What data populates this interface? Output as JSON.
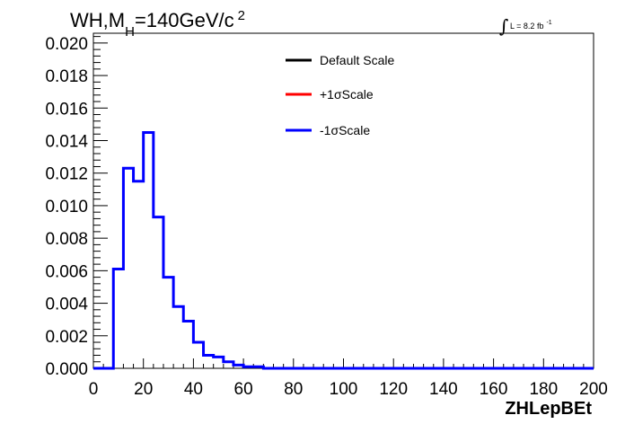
{
  "chart_data": {
    "type": "histogram",
    "title": {
      "main1": "WH,M",
      "sub": "H",
      "main2": "=140GeV/c",
      "sup": "2"
    },
    "lumi": {
      "integral": "∫",
      "text": "L = 8.2 fb",
      "sup": "-1"
    },
    "xlabel": "ZHLepBEt",
    "ylabel": "",
    "xlim": [
      0,
      200
    ],
    "ylim": [
      0,
      0.0206
    ],
    "x_ticks": [
      "0",
      "20",
      "40",
      "60",
      "80",
      "100",
      "120",
      "140",
      "160",
      "180",
      "200"
    ],
    "y_ticks": [
      "0.000",
      "0.002",
      "0.004",
      "0.006",
      "0.008",
      "0.010",
      "0.012",
      "0.014",
      "0.016",
      "0.018",
      "0.020"
    ],
    "bin_width": 4,
    "bin_edges_start": 0,
    "legend": [
      {
        "name": "Default Scale",
        "color": "#000000"
      },
      {
        "name": "+1σScale",
        "color": "#ff0000"
      },
      {
        "name": "-1σScale",
        "color": "#0000ff"
      }
    ],
    "series": [
      {
        "name": "-1σScale",
        "color": "#0000ff",
        "values": [
          0,
          0,
          0.0061,
          0.0123,
          0.0115,
          0.0145,
          0.0093,
          0.0056,
          0.0038,
          0.0029,
          0.0016,
          0.0008,
          0.0007,
          0.0004,
          0.0002,
          0.0001,
          0.0001,
          0,
          0,
          0,
          0,
          0,
          0,
          0,
          0,
          0,
          0,
          0,
          0,
          0,
          0,
          0,
          0,
          0,
          0,
          0,
          0,
          0,
          0,
          0,
          0,
          0,
          0,
          0,
          0,
          0,
          0,
          0,
          0,
          0
        ]
      }
    ]
  }
}
